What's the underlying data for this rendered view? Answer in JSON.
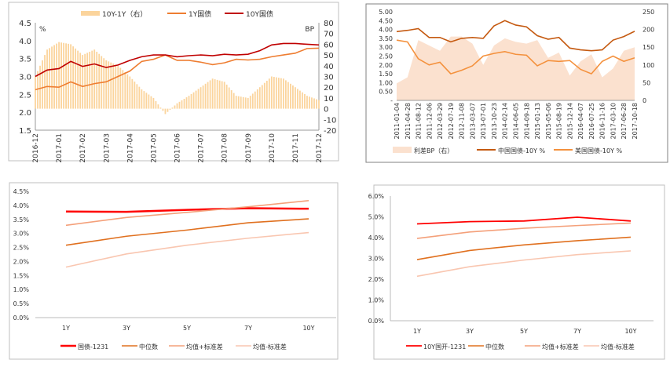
{
  "chart_data": [
    {
      "type": "line+bar",
      "legend": [
        "10Y-1Y（右）",
        "1Y国债",
        "10Y国债"
      ],
      "legend_position": "top",
      "y_unit_left": "%",
      "y_unit_right": "BP",
      "ylim_left": [
        1.5,
        4.5
      ],
      "yticks_left": [
        "4.5",
        "4.0",
        "3.5",
        "3.0",
        "2.5",
        "2.0",
        "1.5"
      ],
      "ylim_right": [
        -20,
        80
      ],
      "yticks_right": [
        "80",
        "70",
        "60",
        "50",
        "40",
        "30",
        "20",
        "10",
        "0",
        "-10",
        "-20"
      ],
      "xtick_labels": [
        "2016-12",
        "2017-01",
        "2017-02",
        "2017-03",
        "2017-04",
        "2017-05",
        "2017-06",
        "2017-07",
        "2017-08",
        "2017-09",
        "2017-10",
        "2017-11",
        "2017-12"
      ],
      "x": [
        "2016-12-01",
        "2016-12-15",
        "2017-01-01",
        "2017-01-15",
        "2017-02-01",
        "2017-02-15",
        "2017-03-01",
        "2017-03-15",
        "2017-04-01",
        "2017-04-15",
        "2017-05-01",
        "2017-05-15",
        "2017-06-01",
        "2017-06-15",
        "2017-07-01",
        "2017-07-15",
        "2017-08-01",
        "2017-08-15",
        "2017-09-01",
        "2017-09-15",
        "2017-10-01",
        "2017-10-15",
        "2017-11-01",
        "2017-11-15",
        "2017-12-01"
      ],
      "series": [
        {
          "name": "10Y-1Y（右）",
          "axis": "right",
          "kind": "bar",
          "color": "#fbd49c",
          "values": [
            30,
            55,
            62,
            60,
            50,
            55,
            45,
            40,
            30,
            18,
            10,
            -5,
            5,
            12,
            20,
            28,
            25,
            12,
            10,
            20,
            30,
            28,
            20,
            12,
            8
          ]
        },
        {
          "name": "1Y国债",
          "axis": "left",
          "kind": "line",
          "color": "#ee7d31",
          "values": [
            2.63,
            2.72,
            2.7,
            2.85,
            2.72,
            2.8,
            2.85,
            3.0,
            3.15,
            3.42,
            3.48,
            3.6,
            3.45,
            3.45,
            3.4,
            3.33,
            3.38,
            3.48,
            3.46,
            3.48,
            3.55,
            3.6,
            3.65,
            3.78,
            3.79
          ]
        },
        {
          "name": "10Y国债",
          "axis": "left",
          "kind": "line",
          "color": "#c00000",
          "values": [
            3.0,
            3.18,
            3.22,
            3.42,
            3.28,
            3.35,
            3.25,
            3.32,
            3.45,
            3.55,
            3.6,
            3.6,
            3.55,
            3.58,
            3.6,
            3.58,
            3.62,
            3.6,
            3.62,
            3.72,
            3.88,
            3.92,
            3.92,
            3.9,
            3.88
          ]
        }
      ],
      "grid": false
    },
    {
      "type": "line+area",
      "legend": [
        "利差BP（右）",
        "中国国债-10Y %",
        "美国国债-10Y %"
      ],
      "legend_position": "bottom",
      "ylim_left": [
        0,
        5
      ],
      "yticks_left": [
        "5.00",
        "4.50",
        "4.00",
        "3.50",
        "3.00",
        "2.50",
        "2.00",
        "1.50",
        "1.00",
        "0.50",
        "-"
      ],
      "ylim_right": [
        0,
        250
      ],
      "yticks_right": [
        "250",
        "200",
        "150",
        "100",
        "50",
        "0"
      ],
      "x": [
        "2011-01-04",
        "2011-04-28",
        "2011-08-12",
        "2011-12-06",
        "2012-03-29",
        "2012-07-19",
        "2012-11-08",
        "2013-03-07",
        "2013-07-01",
        "2013-10-23",
        "2014-02-14",
        "2014-06-05",
        "2014-09-18",
        "2015-01-13",
        "2015-05-06",
        "2015-08-19",
        "2015-12-14",
        "2016-04-07",
        "2016-07-25",
        "2016-11-16",
        "2017-03-10",
        "2017-06-28",
        "2017-10-18"
      ],
      "series": [
        {
          "name": "利差BP（右）",
          "axis": "right",
          "kind": "area",
          "color": "#fbe1cf",
          "values": [
            48,
            65,
            170,
            155,
            140,
            180,
            180,
            160,
            100,
            155,
            175,
            165,
            160,
            170,
            120,
            135,
            70,
            110,
            130,
            65,
            90,
            140,
            150
          ]
        },
        {
          "name": "中国国债-10Y %",
          "axis": "left",
          "kind": "line",
          "color": "#c55a11",
          "values": [
            3.88,
            3.95,
            4.05,
            3.55,
            3.55,
            3.3,
            3.5,
            3.55,
            3.5,
            4.2,
            4.5,
            4.25,
            4.15,
            3.65,
            3.45,
            3.55,
            2.95,
            2.85,
            2.8,
            2.85,
            3.4,
            3.6,
            3.9
          ]
        },
        {
          "name": "美国国债-10Y %",
          "axis": "left",
          "kind": "line",
          "color": "#f4913d",
          "values": [
            3.4,
            3.3,
            2.35,
            2.0,
            2.15,
            1.5,
            1.7,
            1.95,
            2.5,
            2.65,
            2.75,
            2.6,
            2.55,
            1.95,
            2.25,
            2.2,
            2.25,
            1.75,
            1.5,
            2.2,
            2.5,
            2.2,
            2.4
          ]
        }
      ],
      "grid": false
    },
    {
      "type": "line",
      "categories": [
        "1Y",
        "3Y",
        "5Y",
        "7Y",
        "10Y"
      ],
      "ylim": [
        0,
        4.5
      ],
      "yticks": [
        "4.5%",
        "4.0%",
        "3.5%",
        "3.0%",
        "2.5%",
        "2.0%",
        "1.5%",
        "1.0%",
        "0.5%",
        "0.0%"
      ],
      "legend_position": "bottom",
      "series": [
        {
          "name": "国债-1231",
          "color": "#ff0000",
          "width": 2.5,
          "values": [
            3.78,
            3.77,
            3.84,
            3.9,
            3.88
          ]
        },
        {
          "name": "中位数",
          "color": "#e0701f",
          "width": 1.6,
          "values": [
            2.58,
            2.9,
            3.12,
            3.38,
            3.52
          ]
        },
        {
          "name": "均值+标准差",
          "color": "#f4a07a",
          "width": 1.6,
          "values": [
            3.29,
            3.57,
            3.75,
            3.95,
            4.17
          ]
        },
        {
          "name": "均值-标准差",
          "color": "#f9c6b0",
          "width": 1.6,
          "values": [
            1.8,
            2.27,
            2.58,
            2.83,
            3.03
          ]
        }
      ],
      "grid": false
    },
    {
      "type": "line",
      "categories": [
        "1Y",
        "3Y",
        "5Y",
        "7Y",
        "10Y"
      ],
      "ylim": [
        0,
        6
      ],
      "yticks": [
        "6.0%",
        "5.0%",
        "4.0%",
        "3.0%",
        "2.0%",
        "1.0%",
        "0.0%"
      ],
      "legend_position": "bottom",
      "series": [
        {
          "name": "10Y国开-1231",
          "color": "#ff0000",
          "width": 1.8,
          "values": [
            4.66,
            4.77,
            4.8,
            4.98,
            4.8
          ]
        },
        {
          "name": "中位数",
          "color": "#e0701f",
          "width": 1.6,
          "values": [
            2.94,
            3.38,
            3.65,
            3.85,
            4.02
          ]
        },
        {
          "name": "均值+标准差",
          "color": "#f4a07a",
          "width": 1.6,
          "values": [
            3.96,
            4.27,
            4.45,
            4.58,
            4.7
          ]
        },
        {
          "name": "均值-标准差",
          "color": "#f9c6b0",
          "width": 1.6,
          "values": [
            2.14,
            2.6,
            2.92,
            3.18,
            3.36
          ]
        }
      ],
      "grid": false
    }
  ]
}
